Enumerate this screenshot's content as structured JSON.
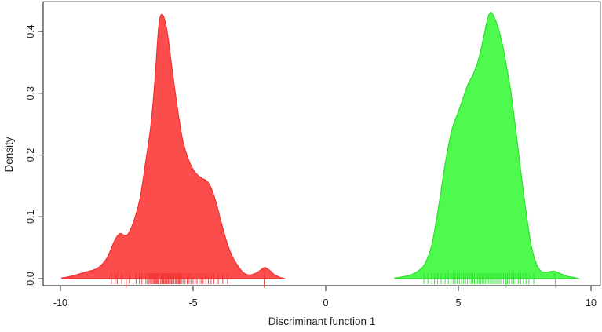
{
  "figure": {
    "background": "#ffffff",
    "box_color": "#8f8f8f",
    "axis_line_color": "#3a3a3a",
    "tick_color": "#4a4a4a",
    "text_color": "#1f1f1f"
  },
  "chart_data": {
    "type": "area",
    "title": "",
    "xlabel": "Discriminant function 1",
    "ylabel": "Density",
    "xlim": [
      -10.65,
      10.355
    ],
    "ylim": [
      -0.0114,
      0.4483
    ],
    "grid": false,
    "legend": false,
    "x_ticks": [
      -10,
      -5,
      0,
      5,
      10
    ],
    "x_tick_labels": [
      "-10",
      "-5",
      "0",
      "5",
      "10"
    ],
    "y_ticks": [
      0,
      0.1,
      0.2,
      0.3,
      0.4
    ],
    "y_tick_labels": [
      "0.0",
      "0.1",
      "0.2",
      "0.3",
      "0.4"
    ],
    "series": [
      {
        "name": "group-1-density",
        "fill": "#fc4d4d",
        "stroke": "#ee3232",
        "peak": {
          "x": -6.2,
          "density": 0.427
        },
        "points": [
          [
            -9.95,
            0.001
          ],
          [
            -9.6,
            0.004
          ],
          [
            -9.1,
            0.01
          ],
          [
            -8.6,
            0.017
          ],
          [
            -8.25,
            0.033
          ],
          [
            -7.95,
            0.062
          ],
          [
            -7.75,
            0.073
          ],
          [
            -7.5,
            0.07
          ],
          [
            -7.25,
            0.091
          ],
          [
            -7.0,
            0.13
          ],
          [
            -6.8,
            0.185
          ],
          [
            -6.6,
            0.245
          ],
          [
            -6.45,
            0.315
          ],
          [
            -6.3,
            0.405
          ],
          [
            -6.2,
            0.427
          ],
          [
            -6.08,
            0.42
          ],
          [
            -5.95,
            0.392
          ],
          [
            -5.78,
            0.335
          ],
          [
            -5.57,
            0.27
          ],
          [
            -5.38,
            0.222
          ],
          [
            -5.12,
            0.187
          ],
          [
            -4.88,
            0.17
          ],
          [
            -4.65,
            0.162
          ],
          [
            -4.48,
            0.158
          ],
          [
            -4.3,
            0.145
          ],
          [
            -4.1,
            0.118
          ],
          [
            -3.92,
            0.088
          ],
          [
            -3.72,
            0.058
          ],
          [
            -3.52,
            0.036
          ],
          [
            -3.3,
            0.02
          ],
          [
            -3.08,
            0.009
          ],
          [
            -2.88,
            0.006
          ],
          [
            -2.62,
            0.009
          ],
          [
            -2.42,
            0.015
          ],
          [
            -2.28,
            0.018
          ],
          [
            -2.1,
            0.013
          ],
          [
            -1.92,
            0.006
          ],
          [
            -1.72,
            0.002
          ],
          [
            -1.55,
            0.0
          ]
        ],
        "rug": [
          -8.08,
          -7.94,
          -7.86,
          -7.69,
          -7.4,
          -7.15,
          -7.02,
          -6.93,
          -6.85,
          -6.78,
          -6.72,
          -6.66,
          -6.62,
          -6.58,
          -6.54,
          -6.5,
          -6.46,
          -6.43,
          -6.4,
          -6.37,
          -6.34,
          -6.31,
          -6.28,
          -6.22,
          -6.18,
          -6.14,
          -6.11,
          -6.07,
          -6.04,
          -6.0,
          -5.97,
          -5.93,
          -5.89,
          -5.85,
          -5.81,
          -5.77,
          -5.72,
          -5.67,
          -5.63,
          -5.59,
          -5.55,
          -5.52,
          -5.48,
          -5.44,
          -5.38,
          -5.3,
          -5.22,
          -5.15,
          -5.08,
          -5.0,
          -4.92,
          -4.85,
          -4.77,
          -4.7,
          -4.62,
          -4.52,
          -4.42,
          -4.32,
          -4.22,
          -4.05,
          -3.88,
          -3.7
        ],
        "rug_long": [
          -7.52,
          -2.32
        ]
      },
      {
        "name": "group-2-density",
        "fill": "#4dfa4d",
        "stroke": "#2fdd2f",
        "peak": {
          "x": 6.23,
          "density": 0.431
        },
        "points": [
          [
            2.6,
            0.001
          ],
          [
            2.9,
            0.003
          ],
          [
            3.2,
            0.006
          ],
          [
            3.5,
            0.013
          ],
          [
            3.75,
            0.025
          ],
          [
            4.0,
            0.055
          ],
          [
            4.25,
            0.115
          ],
          [
            4.5,
            0.185
          ],
          [
            4.75,
            0.24
          ],
          [
            5.0,
            0.27
          ],
          [
            5.2,
            0.295
          ],
          [
            5.37,
            0.315
          ],
          [
            5.55,
            0.33
          ],
          [
            5.75,
            0.353
          ],
          [
            5.95,
            0.39
          ],
          [
            6.1,
            0.42
          ],
          [
            6.23,
            0.431
          ],
          [
            6.38,
            0.42
          ],
          [
            6.52,
            0.403
          ],
          [
            6.68,
            0.375
          ],
          [
            6.82,
            0.342
          ],
          [
            6.97,
            0.305
          ],
          [
            7.15,
            0.245
          ],
          [
            7.35,
            0.175
          ],
          [
            7.55,
            0.108
          ],
          [
            7.75,
            0.053
          ],
          [
            7.95,
            0.023
          ],
          [
            8.15,
            0.011
          ],
          [
            8.4,
            0.011
          ],
          [
            8.62,
            0.012
          ],
          [
            8.85,
            0.008
          ],
          [
            9.1,
            0.004
          ],
          [
            9.35,
            0.002
          ],
          [
            9.55,
            0.0
          ]
        ],
        "rug": [
          3.7,
          3.85,
          4.0,
          4.1,
          4.22,
          4.35,
          4.5,
          4.62,
          4.72,
          4.8,
          4.88,
          4.96,
          5.04,
          5.12,
          5.2,
          5.27,
          5.34,
          5.41,
          5.48,
          5.55,
          5.61,
          5.67,
          5.73,
          5.79,
          5.85,
          5.91,
          5.97,
          6.03,
          6.09,
          6.15,
          6.21,
          6.27,
          6.33,
          6.39,
          6.45,
          6.51,
          6.57,
          6.63,
          6.7,
          6.77,
          6.85,
          6.93,
          7.01,
          7.09,
          7.17,
          7.26,
          7.35,
          7.45,
          7.55,
          7.66,
          7.84
        ],
        "rug_long": [
          6.8,
          8.65
        ]
      }
    ]
  }
}
